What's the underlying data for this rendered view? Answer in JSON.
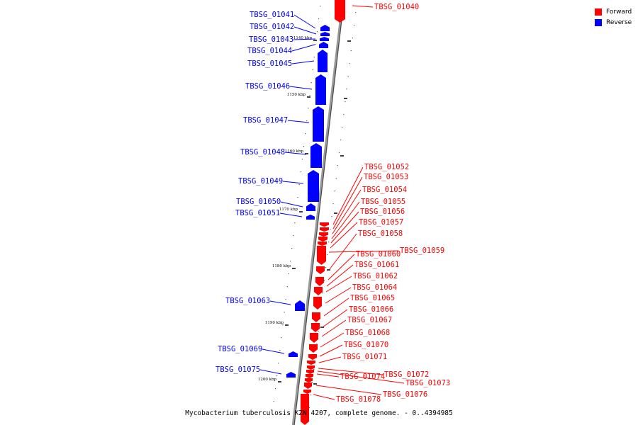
{
  "legend": {
    "forward_label": "Forward",
    "reverse_label": "Reverse",
    "forward_color": "#ff0000",
    "reverse_color": "#0000ff"
  },
  "caption": "Mycobacterium tuberculosis KZN 4207, complete genome. - 0..4394985",
  "ticks": [
    "1140 kbp",
    "1150 kbp",
    "1160 kbp",
    "1170 kbp",
    "1180 kbp",
    "1190 kbp",
    "1200 kbp"
  ],
  "reverse_genes": [
    "TBSG_01041",
    "TBSG_01042",
    "TBSG_01043",
    "TBSG_01044",
    "TBSG_01045",
    "TBSG_01046",
    "TBSG_01047",
    "TBSG_01048",
    "TBSG_01049",
    "TBSG_01050",
    "TBSG_01051",
    "TBSG_01063",
    "TBSG_01069",
    "TBSG_01075"
  ],
  "forward_genes": [
    "TBSG_01040",
    "TBSG_01052",
    "TBSG_01053",
    "TBSG_01054",
    "TBSG_01055",
    "TBSG_01056",
    "TBSG_01057",
    "TBSG_01058",
    "TBSG_01059",
    "TBSG_01060",
    "TBSG_01061",
    "TBSG_01062",
    "TBSG_01064",
    "TBSG_01065",
    "TBSG_01066",
    "TBSG_01067",
    "TBSG_01068",
    "TBSG_01070",
    "TBSG_01071",
    "TBSG_01072",
    "TBSG_01073",
    "TBSG_01074",
    "TBSG_01076",
    "TBSG_01078"
  ]
}
